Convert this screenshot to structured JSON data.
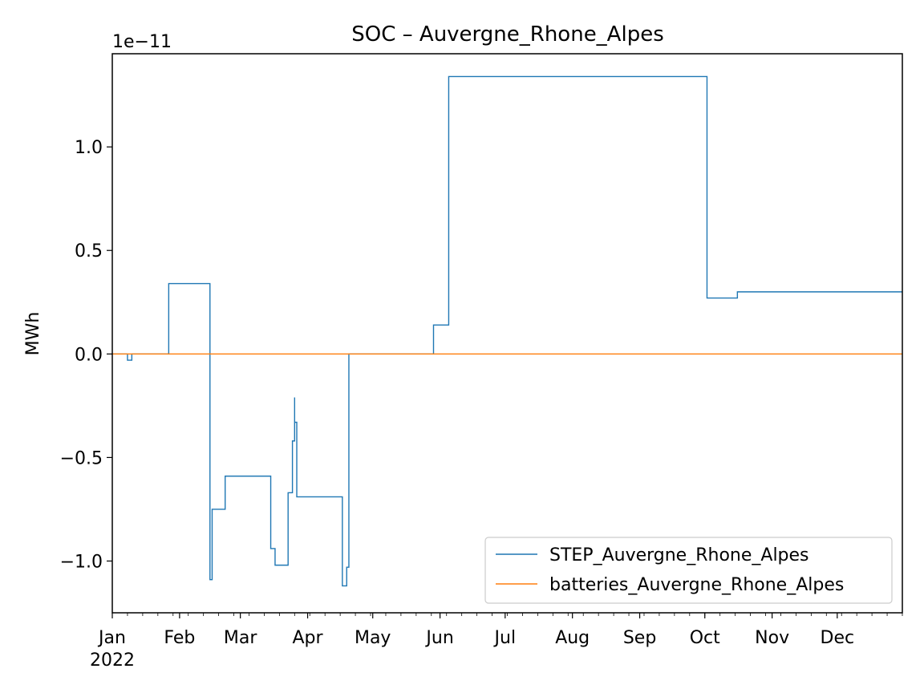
{
  "chart_data": {
    "type": "line",
    "title": "SOC – Auvergne_Rhone_Alpes",
    "xlabel": "",
    "ylabel": "MWh",
    "y_multiplier_label": "1e−11",
    "xlim": [
      "2022-01-01",
      "2022-12-31"
    ],
    "ylim": [
      -1.25,
      1.45
    ],
    "y_ticks": [
      -1.0,
      -0.5,
      0.0,
      0.5,
      1.0
    ],
    "y_tick_labels": [
      "−1.0",
      "−0.5",
      "0.0",
      "0.5",
      "1.0"
    ],
    "x_ticks": [
      {
        "date": "2022-01-01",
        "label": "Jan"
      },
      {
        "date": "2022-02-01",
        "label": "Feb"
      },
      {
        "date": "2022-03-01",
        "label": "Mar"
      },
      {
        "date": "2022-04-01",
        "label": "Apr"
      },
      {
        "date": "2022-05-01",
        "label": "May"
      },
      {
        "date": "2022-06-01",
        "label": "Jun"
      },
      {
        "date": "2022-07-01",
        "label": "Jul"
      },
      {
        "date": "2022-08-01",
        "label": "Aug"
      },
      {
        "date": "2022-09-01",
        "label": "Sep"
      },
      {
        "date": "2022-10-01",
        "label": "Oct"
      },
      {
        "date": "2022-11-01",
        "label": "Nov"
      },
      {
        "date": "2022-12-01",
        "label": "Dec"
      }
    ],
    "x_year_label": "2022",
    "legend_position": "lower-right",
    "grid": false,
    "series": [
      {
        "name": "STEP_Auvergne_Rhone_Alpes",
        "color": "#1f77b4",
        "step": true,
        "points": [
          [
            "2022-01-01",
            0.0
          ],
          [
            "2022-01-08",
            -0.03
          ],
          [
            "2022-01-10",
            0.0
          ],
          [
            "2022-01-27",
            0.34
          ],
          [
            "2022-02-15",
            -1.09
          ],
          [
            "2022-02-16",
            -0.75
          ],
          [
            "2022-02-22",
            -0.59
          ],
          [
            "2022-03-15",
            -0.94
          ],
          [
            "2022-03-17",
            -1.02
          ],
          [
            "2022-03-23",
            -0.67
          ],
          [
            "2022-03-25",
            -0.42
          ],
          [
            "2022-03-26",
            -0.21
          ],
          [
            "2022-03-26",
            -0.33
          ],
          [
            "2022-03-27",
            -0.69
          ],
          [
            "2022-04-17",
            -1.12
          ],
          [
            "2022-04-19",
            -1.03
          ],
          [
            "2022-04-20",
            0.0
          ],
          [
            "2022-05-29",
            0.14
          ],
          [
            "2022-06-05",
            1.34
          ],
          [
            "2022-10-02",
            0.27
          ],
          [
            "2022-10-16",
            0.3
          ],
          [
            "2022-12-31",
            0.3
          ]
        ]
      },
      {
        "name": "batteries_Auvergne_Rhone_Alpes",
        "color": "#ff7f0e",
        "step": true,
        "points": [
          [
            "2022-01-01",
            0.0
          ],
          [
            "2022-12-31",
            0.0
          ]
        ]
      }
    ]
  }
}
